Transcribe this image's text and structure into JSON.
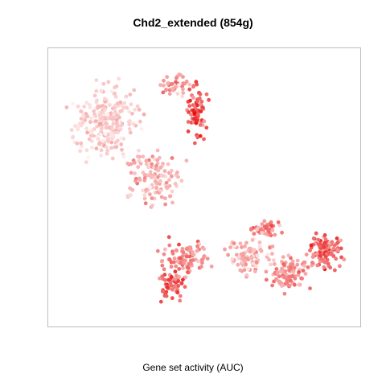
{
  "chart_data": {
    "type": "scatter",
    "title": "Chd2_extended (854g)",
    "xlabel": "Gene set activity (AUC)",
    "ylabel": "",
    "axes_visible": false,
    "grid": false,
    "color_scale": {
      "low": "#ffffff",
      "high": "#e60000"
    }
  }
}
